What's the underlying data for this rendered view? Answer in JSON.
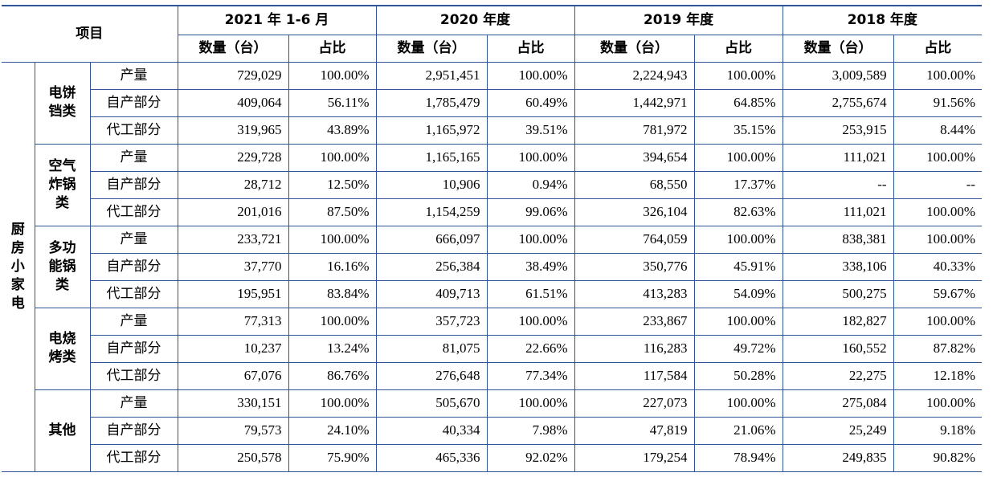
{
  "header": {
    "item_label": "项目",
    "periods": [
      "2021 年 1-6 月",
      "2020 年度",
      "2019 年度",
      "2018 年度"
    ],
    "qty_label": "数量（台）",
    "ratio_label": "占比"
  },
  "category_chars": [
    "厨",
    "房",
    "小",
    "家",
    "电"
  ],
  "groups": [
    {
      "name_lines": [
        "电饼",
        "铛类"
      ],
      "rows": [
        {
          "label": "产量",
          "values": [
            "729,029",
            "100.00%",
            "2,951,451",
            "100.00%",
            "2,224,943",
            "100.00%",
            "3,009,589",
            "100.00%"
          ]
        },
        {
          "label": "自产部分",
          "values": [
            "409,064",
            "56.11%",
            "1,785,479",
            "60.49%",
            "1,442,971",
            "64.85%",
            "2,755,674",
            "91.56%"
          ]
        },
        {
          "label": "代工部分",
          "values": [
            "319,965",
            "43.89%",
            "1,165,972",
            "39.51%",
            "781,972",
            "35.15%",
            "253,915",
            "8.44%"
          ]
        }
      ]
    },
    {
      "name_lines": [
        "空气",
        "炸锅",
        "类"
      ],
      "rows": [
        {
          "label": "产量",
          "values": [
            "229,728",
            "100.00%",
            "1,165,165",
            "100.00%",
            "394,654",
            "100.00%",
            "111,021",
            "100.00%"
          ]
        },
        {
          "label": "自产部分",
          "values": [
            "28,712",
            "12.50%",
            "10,906",
            "0.94%",
            "68,550",
            "17.37%",
            "--",
            "--"
          ]
        },
        {
          "label": "代工部分",
          "values": [
            "201,016",
            "87.50%",
            "1,154,259",
            "99.06%",
            "326,104",
            "82.63%",
            "111,021",
            "100.00%"
          ]
        }
      ]
    },
    {
      "name_lines": [
        "多功",
        "能锅",
        "类"
      ],
      "rows": [
        {
          "label": "产量",
          "values": [
            "233,721",
            "100.00%",
            "666,097",
            "100.00%",
            "764,059",
            "100.00%",
            "838,381",
            "100.00%"
          ]
        },
        {
          "label": "自产部分",
          "values": [
            "37,770",
            "16.16%",
            "256,384",
            "38.49%",
            "350,776",
            "45.91%",
            "338,106",
            "40.33%"
          ]
        },
        {
          "label": "代工部分",
          "values": [
            "195,951",
            "83.84%",
            "409,713",
            "61.51%",
            "413,283",
            "54.09%",
            "500,275",
            "59.67%"
          ]
        }
      ]
    },
    {
      "name_lines": [
        "电烧",
        "烤类"
      ],
      "rows": [
        {
          "label": "产量",
          "values": [
            "77,313",
            "100.00%",
            "357,723",
            "100.00%",
            "233,867",
            "100.00%",
            "182,827",
            "100.00%"
          ]
        },
        {
          "label": "自产部分",
          "values": [
            "10,237",
            "13.24%",
            "81,075",
            "22.66%",
            "116,283",
            "49.72%",
            "160,552",
            "87.82%"
          ]
        },
        {
          "label": "代工部分",
          "values": [
            "67,076",
            "86.76%",
            "276,648",
            "77.34%",
            "117,584",
            "50.28%",
            "22,275",
            "12.18%"
          ]
        }
      ]
    },
    {
      "name_lines": [
        "其他"
      ],
      "rows": [
        {
          "label": "产量",
          "values": [
            "330,151",
            "100.00%",
            "505,670",
            "100.00%",
            "227,073",
            "100.00%",
            "275,084",
            "100.00%"
          ]
        },
        {
          "label": "自产部分",
          "values": [
            "79,573",
            "24.10%",
            "40,334",
            "7.98%",
            "47,819",
            "21.06%",
            "25,249",
            "9.18%"
          ]
        },
        {
          "label": "代工部分",
          "values": [
            "250,578",
            "75.90%",
            "465,336",
            "92.02%",
            "179,254",
            "78.94%",
            "249,835",
            "90.82%"
          ]
        }
      ]
    }
  ]
}
